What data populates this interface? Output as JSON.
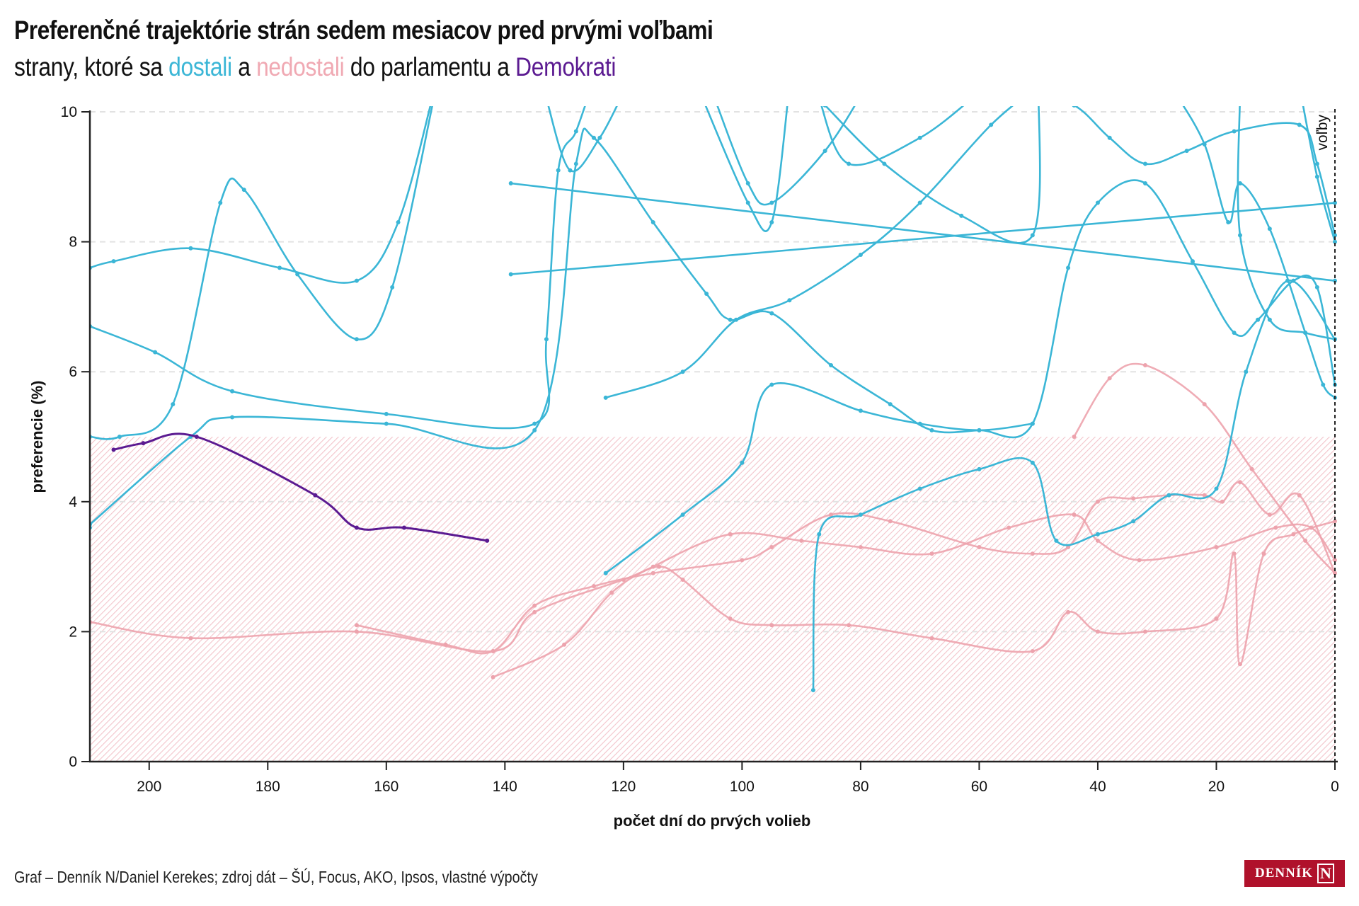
{
  "header": {
    "title": "Preferenčné trajektórie strán sedem mesiacov pred prvými voľbami",
    "subtitle_parts": {
      "p1": "strany, ktoré sa ",
      "dostali": "dostali",
      "p2": " a ",
      "nedostali": "nedostali",
      "p3": " do parlamentu a ",
      "demokrati": "Demokrati"
    }
  },
  "footer": {
    "credit": "Graf – Denník N/Daniel Kerekes; zdroj dát – ŠÚ, Focus, AKO, Ipsos, vlastné výpočty",
    "logo_text": "DENNÍK",
    "logo_mark": "N"
  },
  "colors": {
    "dostali": "#3bb6d6",
    "nedostali": "#eda3ad",
    "demokrati": "#5b1a91",
    "threshold_fill": "#f3c4cb",
    "election_line": "#222222"
  },
  "chart_data": {
    "type": "line",
    "title": "Preferenčné trajektórie strán sedem mesiacov pred prvými voľbami",
    "xlabel": "počet dní do prvých volieb",
    "ylabel": "preferencie (%)",
    "xlim": [
      210,
      0
    ],
    "ylim": [
      0,
      10
    ],
    "x_ticks": [
      200,
      180,
      160,
      140,
      120,
      100,
      80,
      60,
      40,
      20,
      0
    ],
    "y_ticks": [
      0,
      2,
      4,
      6,
      8,
      10
    ],
    "grid": "horizontal dashed",
    "threshold": {
      "value": 5,
      "label": "hatched area below 5 %"
    },
    "annotation": {
      "x": 0,
      "label": "voľby"
    },
    "series": [
      {
        "name": "dostali-1",
        "group": "dostali",
        "points": [
          [
            210,
            7.6
          ],
          [
            206,
            7.7
          ],
          [
            193,
            7.9
          ],
          [
            178,
            7.6
          ],
          [
            165,
            7.4
          ],
          [
            158,
            8.3
          ],
          [
            152,
            10.3
          ]
        ]
      },
      {
        "name": "dostali-2",
        "group": "dostali",
        "points": [
          [
            210,
            6.7
          ],
          [
            199,
            6.3
          ],
          [
            186,
            5.7
          ],
          [
            160,
            5.35
          ],
          [
            135,
            5.2
          ],
          [
            133,
            6.5
          ],
          [
            131,
            9.1
          ],
          [
            128,
            9.7
          ],
          [
            125,
            10.5
          ]
        ]
      },
      {
        "name": "dostali-3",
        "group": "dostali",
        "points": [
          [
            210,
            3.65
          ],
          [
            193,
            5.0
          ],
          [
            186,
            5.3
          ],
          [
            160,
            5.2
          ],
          [
            135,
            5.1
          ],
          [
            128,
            9.2
          ],
          [
            125,
            9.6
          ],
          [
            115,
            8.3
          ],
          [
            106,
            7.2
          ],
          [
            102,
            6.8
          ],
          [
            95,
            6.9
          ],
          [
            85,
            6.1
          ],
          [
            75,
            5.5
          ],
          [
            68,
            5.1
          ],
          [
            60,
            5.1
          ],
          [
            51,
            5.2
          ],
          [
            45,
            7.6
          ],
          [
            40,
            8.6
          ],
          [
            32,
            8.9
          ],
          [
            24,
            7.7
          ],
          [
            17,
            6.6
          ],
          [
            13,
            6.8
          ],
          [
            7,
            7.4
          ],
          [
            3,
            7.3
          ],
          [
            0,
            5.8
          ]
        ]
      },
      {
        "name": "dostali-4",
        "group": "dostali",
        "points": [
          [
            210,
            5.0
          ],
          [
            205,
            5.0
          ],
          [
            196,
            5.5
          ],
          [
            188,
            8.6
          ],
          [
            184,
            8.8
          ],
          [
            175,
            7.5
          ],
          [
            165,
            6.5
          ],
          [
            159,
            7.3
          ],
          [
            152,
            10.2
          ]
        ]
      },
      {
        "name": "dostali-5",
        "group": "dostali",
        "points": [
          [
            139,
            8.9
          ],
          [
            0,
            7.4
          ]
        ]
      },
      {
        "name": "dostali-6",
        "group": "dostali",
        "points": [
          [
            139,
            7.5
          ],
          [
            0,
            8.6
          ]
        ]
      },
      {
        "name": "dostali-7",
        "group": "dostali",
        "points": [
          [
            123,
            5.6
          ],
          [
            110,
            6.0
          ],
          [
            101,
            6.8
          ],
          [
            92,
            7.1
          ],
          [
            80,
            7.8
          ],
          [
            70,
            8.6
          ],
          [
            58,
            9.8
          ],
          [
            50,
            10.4
          ]
        ]
      },
      {
        "name": "dostali-8",
        "group": "dostali",
        "points": [
          [
            133,
            10.2
          ],
          [
            129,
            9.1
          ],
          [
            124,
            9.6
          ],
          [
            120,
            10.3
          ]
        ]
      },
      {
        "name": "dostali-9",
        "group": "dostali",
        "points": [
          [
            105,
            10.3
          ],
          [
            99,
            8.9
          ],
          [
            95,
            8.6
          ],
          [
            86,
            9.4
          ],
          [
            79,
            10.4
          ]
        ]
      },
      {
        "name": "dostali-10",
        "group": "dostali",
        "points": [
          [
            108,
            10.5
          ],
          [
            99,
            8.6
          ],
          [
            95,
            8.3
          ],
          [
            92,
            10.4
          ]
        ]
      },
      {
        "name": "dostali-11",
        "group": "dostali",
        "points": [
          [
            87,
            10.2
          ],
          [
            82,
            9.2
          ],
          [
            70,
            9.6
          ],
          [
            60,
            10.3
          ]
        ]
      },
      {
        "name": "dostali-12",
        "group": "dostali",
        "points": [
          [
            86,
            10.1
          ],
          [
            76,
            9.2
          ],
          [
            63,
            8.4
          ],
          [
            51,
            8.1
          ],
          [
            50,
            10.4
          ]
        ]
      },
      {
        "name": "dostali-13",
        "group": "dostali",
        "points": [
          [
            51,
            10.2
          ],
          [
            44,
            10.1
          ],
          [
            38,
            9.6
          ],
          [
            32,
            9.2
          ],
          [
            25,
            9.4
          ],
          [
            17,
            9.7
          ],
          [
            6,
            9.8
          ],
          [
            3,
            9.2
          ],
          [
            0,
            8.1
          ]
        ]
      },
      {
        "name": "dostali-14",
        "group": "dostali",
        "points": [
          [
            27,
            10.3
          ],
          [
            22,
            9.5
          ],
          [
            18,
            8.3
          ],
          [
            16,
            8.9
          ],
          [
            11,
            8.2
          ],
          [
            5,
            6.6
          ],
          [
            2,
            5.8
          ],
          [
            0,
            5.6
          ]
        ]
      },
      {
        "name": "dostali-15",
        "group": "dostali",
        "points": [
          [
            6,
            10.4
          ],
          [
            3,
            9.0
          ],
          [
            0,
            8.0
          ]
        ]
      },
      {
        "name": "dostali-16",
        "group": "dostali",
        "points": [
          [
            16,
            10.3
          ],
          [
            16,
            8.1
          ],
          [
            11,
            6.8
          ],
          [
            5,
            6.6
          ],
          [
            0,
            6.5
          ]
        ]
      },
      {
        "name": "dostali-17",
        "group": "dostali",
        "points": [
          [
            123,
            2.9
          ],
          [
            110,
            3.8
          ],
          [
            100,
            4.6
          ],
          [
            95,
            5.8
          ],
          [
            80,
            5.4
          ],
          [
            70,
            5.2
          ],
          [
            60,
            5.1
          ],
          [
            51,
            5.2
          ]
        ]
      },
      {
        "name": "dostali-18",
        "group": "dostali",
        "points": [
          [
            88,
            1.1
          ],
          [
            87,
            3.5
          ],
          [
            80,
            3.8
          ],
          [
            70,
            4.2
          ],
          [
            60,
            4.5
          ],
          [
            51,
            4.6
          ],
          [
            47,
            3.4
          ],
          [
            40,
            3.5
          ],
          [
            34,
            3.7
          ],
          [
            28,
            4.1
          ],
          [
            20,
            4.2
          ],
          [
            15,
            6.0
          ],
          [
            8,
            7.4
          ],
          [
            0,
            6.5
          ]
        ]
      },
      {
        "name": "dostali-19",
        "group": "dostali",
        "points": [
          [
            210,
            6.7
          ]
        ]
      },
      {
        "name": "dostali-20",
        "group": "dostali",
        "points": [
          [
            210,
            3.6
          ]
        ]
      },
      {
        "name": "nedostali-1",
        "group": "nedostali",
        "points": [
          [
            210,
            2.15
          ],
          [
            193,
            1.9
          ],
          [
            165,
            2.0
          ],
          [
            142,
            1.7
          ],
          [
            135,
            2.3
          ],
          [
            120,
            2.8
          ],
          [
            114,
            3.0
          ],
          [
            110,
            2.8
          ],
          [
            102,
            2.2
          ],
          [
            95,
            2.1
          ],
          [
            82,
            2.1
          ],
          [
            68,
            1.9
          ],
          [
            51,
            1.7
          ],
          [
            45,
            2.3
          ],
          [
            40,
            2.0
          ],
          [
            32,
            2.0
          ],
          [
            20,
            2.2
          ],
          [
            17,
            3.2
          ],
          [
            16,
            1.5
          ],
          [
            12,
            3.2
          ],
          [
            7,
            3.5
          ],
          [
            0,
            3.7
          ]
        ]
      },
      {
        "name": "nedostali-2",
        "group": "nedostali",
        "points": [
          [
            165,
            2.1
          ],
          [
            150,
            1.8
          ],
          [
            142,
            1.7
          ],
          [
            135,
            2.4
          ],
          [
            125,
            2.7
          ],
          [
            115,
            2.9
          ],
          [
            100,
            3.1
          ],
          [
            95,
            3.3
          ],
          [
            85,
            3.8
          ],
          [
            75,
            3.7
          ],
          [
            60,
            3.3
          ],
          [
            51,
            3.2
          ],
          [
            45,
            3.3
          ],
          [
            40,
            4.0
          ],
          [
            34,
            4.05
          ],
          [
            28,
            4.1
          ],
          [
            22,
            4.1
          ],
          [
            19,
            4.0
          ],
          [
            16,
            4.3
          ],
          [
            11,
            3.8
          ],
          [
            6,
            4.1
          ],
          [
            0,
            2.9
          ]
        ]
      },
      {
        "name": "nedostali-3",
        "group": "nedostali",
        "points": [
          [
            142,
            1.3
          ],
          [
            130,
            1.8
          ],
          [
            122,
            2.6
          ],
          [
            115,
            3.0
          ],
          [
            102,
            3.5
          ],
          [
            90,
            3.4
          ],
          [
            80,
            3.3
          ],
          [
            68,
            3.2
          ],
          [
            55,
            3.6
          ],
          [
            44,
            3.8
          ],
          [
            40,
            3.4
          ],
          [
            33,
            3.1
          ],
          [
            20,
            3.3
          ],
          [
            10,
            3.6
          ],
          [
            4,
            3.6
          ],
          [
            0,
            3.1
          ]
        ]
      },
      {
        "name": "nedostali-4",
        "group": "nedostali",
        "points": [
          [
            44,
            5.0
          ],
          [
            38,
            5.9
          ],
          [
            32,
            6.1
          ],
          [
            22,
            5.5
          ],
          [
            14,
            4.5
          ],
          [
            5,
            3.4
          ],
          [
            0,
            2.9
          ]
        ]
      },
      {
        "name": "demokrati",
        "group": "demokrati",
        "points": [
          [
            206,
            4.8
          ],
          [
            201,
            4.9
          ],
          [
            192,
            5.0
          ],
          [
            172,
            4.1
          ],
          [
            165,
            3.6
          ],
          [
            157,
            3.6
          ],
          [
            143,
            3.4
          ]
        ]
      }
    ]
  }
}
